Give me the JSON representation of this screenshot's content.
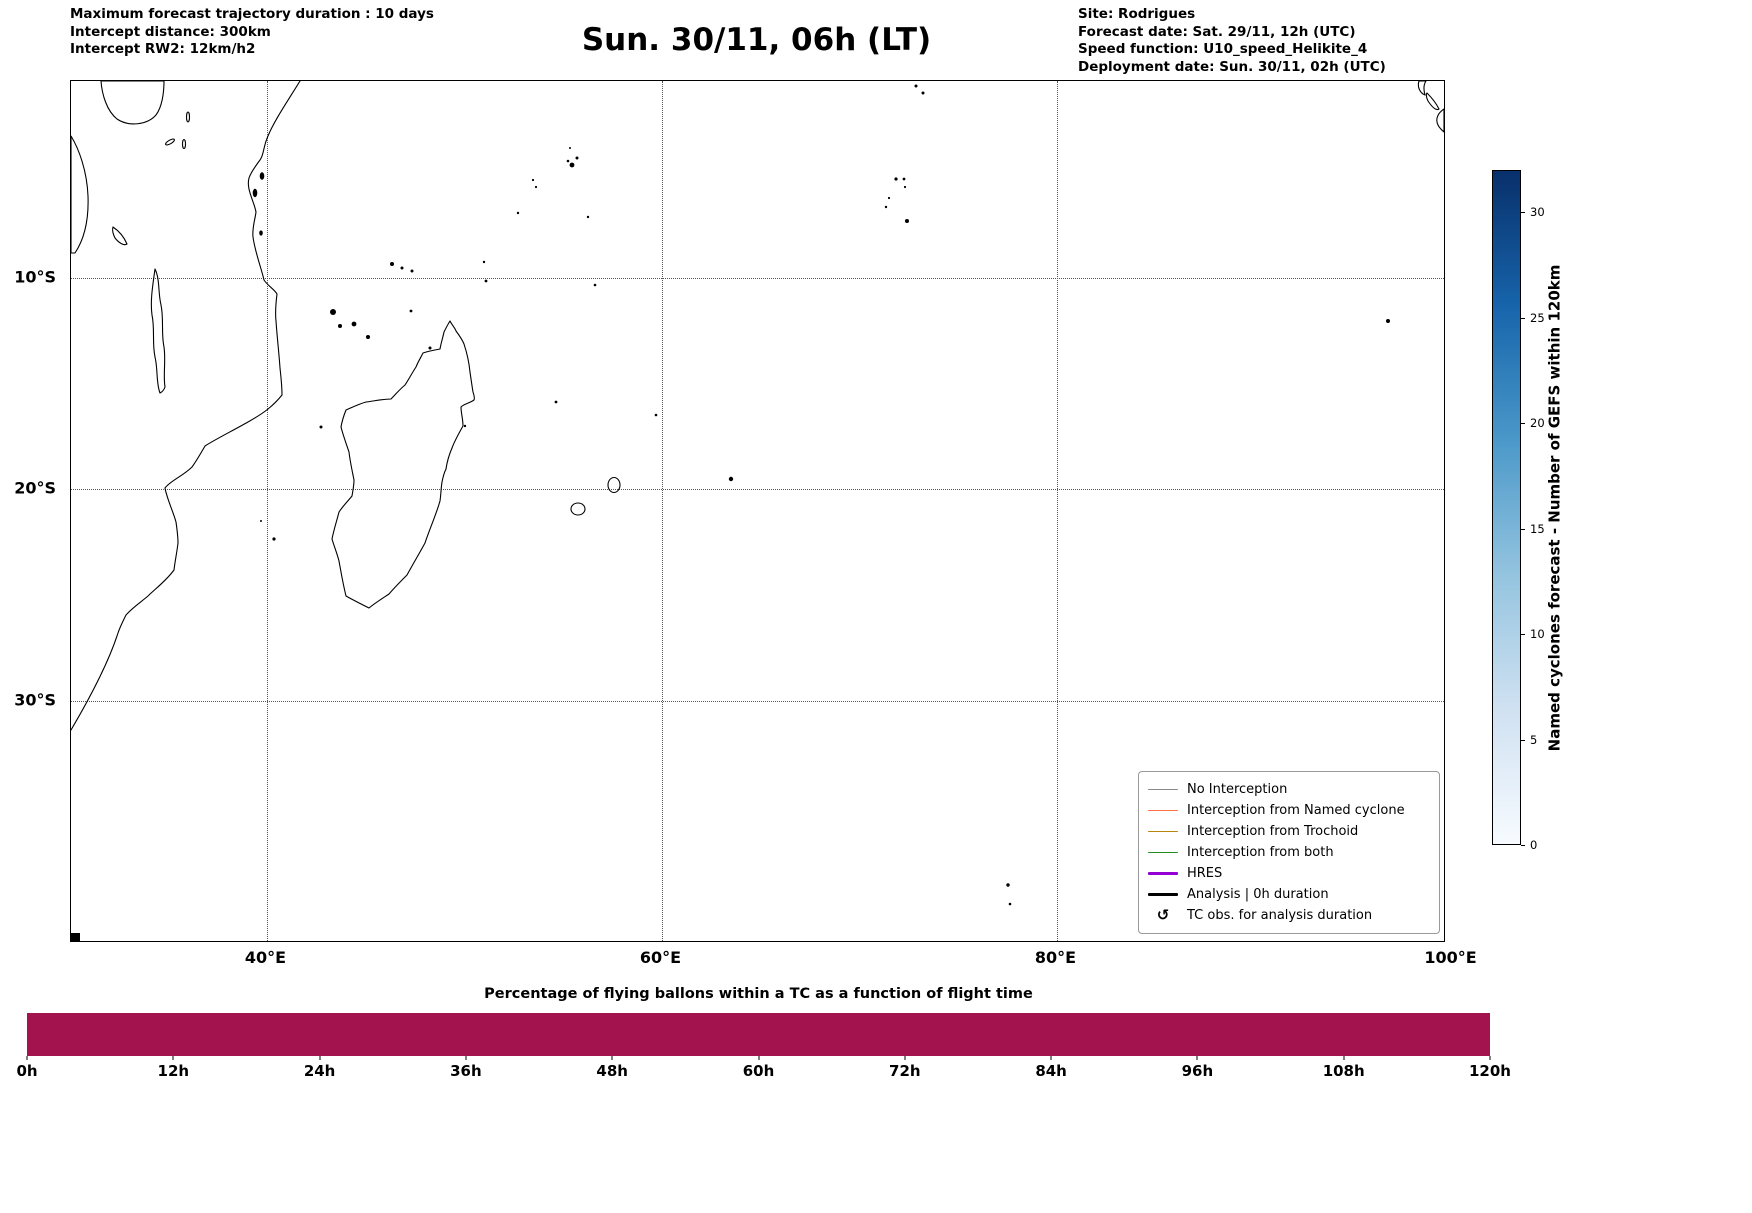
{
  "header": {
    "left": [
      "Maximum forecast trajectory duration : 10 days",
      "Intercept distance: 300km",
      "Intercept RW2: 12km/h2"
    ],
    "title": "Sun. 30/11, 06h (LT)",
    "right": [
      "Site: Rodrigues",
      "Forecast date: Sat. 29/11, 12h (UTC)",
      "Speed function: U10_speed_Helikite_4",
      "Deployment date: Sun. 30/11, 02h (UTC)"
    ]
  },
  "map": {
    "extent": {
      "lon_min": 30.1,
      "lon_max": 99.62,
      "lat_s_min": 0.69,
      "lat_s_max": 41.35
    },
    "lon_ticks": [
      {
        "value": 40,
        "label": "40°E"
      },
      {
        "value": 60,
        "label": "60°E"
      },
      {
        "value": 80,
        "label": "80°E"
      },
      {
        "value": 100,
        "label": "100°E"
      }
    ],
    "lat_ticks": [
      {
        "value": 10,
        "label": "10°S"
      },
      {
        "value": 20,
        "label": "20°S"
      },
      {
        "value": 30,
        "label": "30°S"
      }
    ]
  },
  "legend": {
    "items": [
      {
        "label": "No Interception",
        "type": "line",
        "color": "#8a8a8a",
        "weight": 1.5
      },
      {
        "label": "Interception from Named cyclone",
        "type": "line",
        "color": "#ff7043",
        "weight": 1.5
      },
      {
        "label": "Interception from Trochoid",
        "type": "line",
        "color": "#b8860b",
        "weight": 1.5
      },
      {
        "label": "Interception from both",
        "type": "line",
        "color": "#228b22",
        "weight": 1.5
      },
      {
        "label": "HRES",
        "type": "line",
        "color": "#9400d3",
        "weight": 3.5
      },
      {
        "label": "Analysis | 0h duration",
        "type": "line",
        "color": "#000000",
        "weight": 3.5
      },
      {
        "label": "TC obs. for analysis duration",
        "type": "symbol",
        "symbol": "↺",
        "color": "#000000"
      }
    ]
  },
  "colorbar": {
    "label": "Named cyclones forecast - Number of GEFS within 120km",
    "vmin": 0,
    "vmax": 32,
    "ticks": [
      0,
      5,
      10,
      15,
      20,
      25,
      30
    ],
    "stops": [
      "#f7fbff",
      "#d0e1f2",
      "#94c4df",
      "#4a98c9",
      "#1764ab",
      "#08306b"
    ]
  },
  "bottom_chart": {
    "title": "Percentage of flying ballons within a TC as a function of flight time",
    "bar_color": "#a3134e",
    "x_ticks": [
      "0h",
      "12h",
      "24h",
      "36h",
      "48h",
      "60h",
      "72h",
      "84h",
      "96h",
      "108h",
      "120h"
    ]
  },
  "chart_data": [
    {
      "type": "map",
      "title": "Sun. 30/11, 06h (LT)",
      "region": "Southwest Indian Ocean",
      "extent_lon_e": [
        30.1,
        99.6
      ],
      "extent_lat_s": [
        0.7,
        41.4
      ],
      "gridline_lon_e": [
        40,
        60,
        80,
        100
      ],
      "gridline_lat_s": [
        10,
        20,
        30
      ],
      "grid": true,
      "legend_position": "lower right",
      "features": [
        "East Africa coastline",
        "Madagascar",
        "Comoros",
        "Seychelles",
        "Réunion",
        "Mauritius",
        "Rodrigues",
        "Chagos Archipelago",
        "Maldives (south)",
        "Cocos Islands",
        "Amsterdam and St Paul islands",
        "Sumatra fragments",
        "African rift lakes"
      ]
    },
    {
      "type": "heatmap",
      "subtype": "colorbar-only",
      "label": "Named cyclones forecast - Number of GEFS within 120km",
      "colormap": "Blues",
      "range": [
        0,
        32
      ],
      "ticks": [
        0,
        5,
        10,
        15,
        20,
        25,
        30
      ]
    },
    {
      "type": "bar",
      "title": "Percentage of flying ballons within a TC as a function of flight time",
      "x_range_hours": [
        0,
        120
      ],
      "x_tick_labels": [
        "0h",
        "12h",
        "24h",
        "36h",
        "48h",
        "60h",
        "72h",
        "84h",
        "96h",
        "108h",
        "120h"
      ],
      "bars": [
        {
          "x_start_h": 0,
          "x_end_h": 120,
          "fill_fraction": 1.0
        }
      ],
      "color": "#a3134e"
    }
  ]
}
